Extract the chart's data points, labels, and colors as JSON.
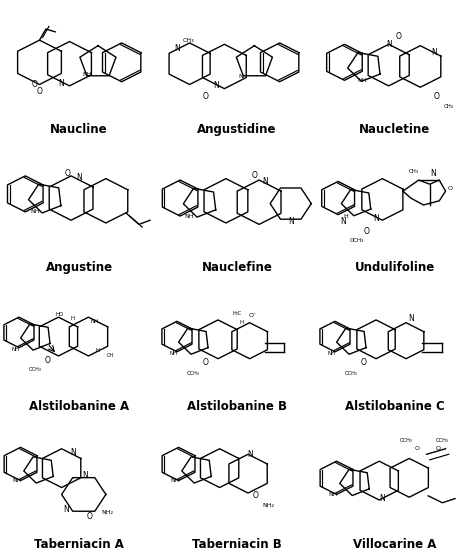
{
  "background_color": "#ffffff",
  "grid_rows": 4,
  "grid_cols": 3,
  "labels": [
    "Naucline",
    "Angustidine",
    "Naucletine",
    "Angustine",
    "Nauclefine",
    "Undulifoline",
    "Alstilobanine A",
    "Alstilobanine B",
    "Alstilobanine C",
    "Taberniacin A",
    "Taberniacin B",
    "Villocarine A"
  ],
  "label_fontsize": 8.5,
  "label_fontweight": "bold",
  "figsize": [
    4.74,
    5.54
  ],
  "dpi": 100
}
